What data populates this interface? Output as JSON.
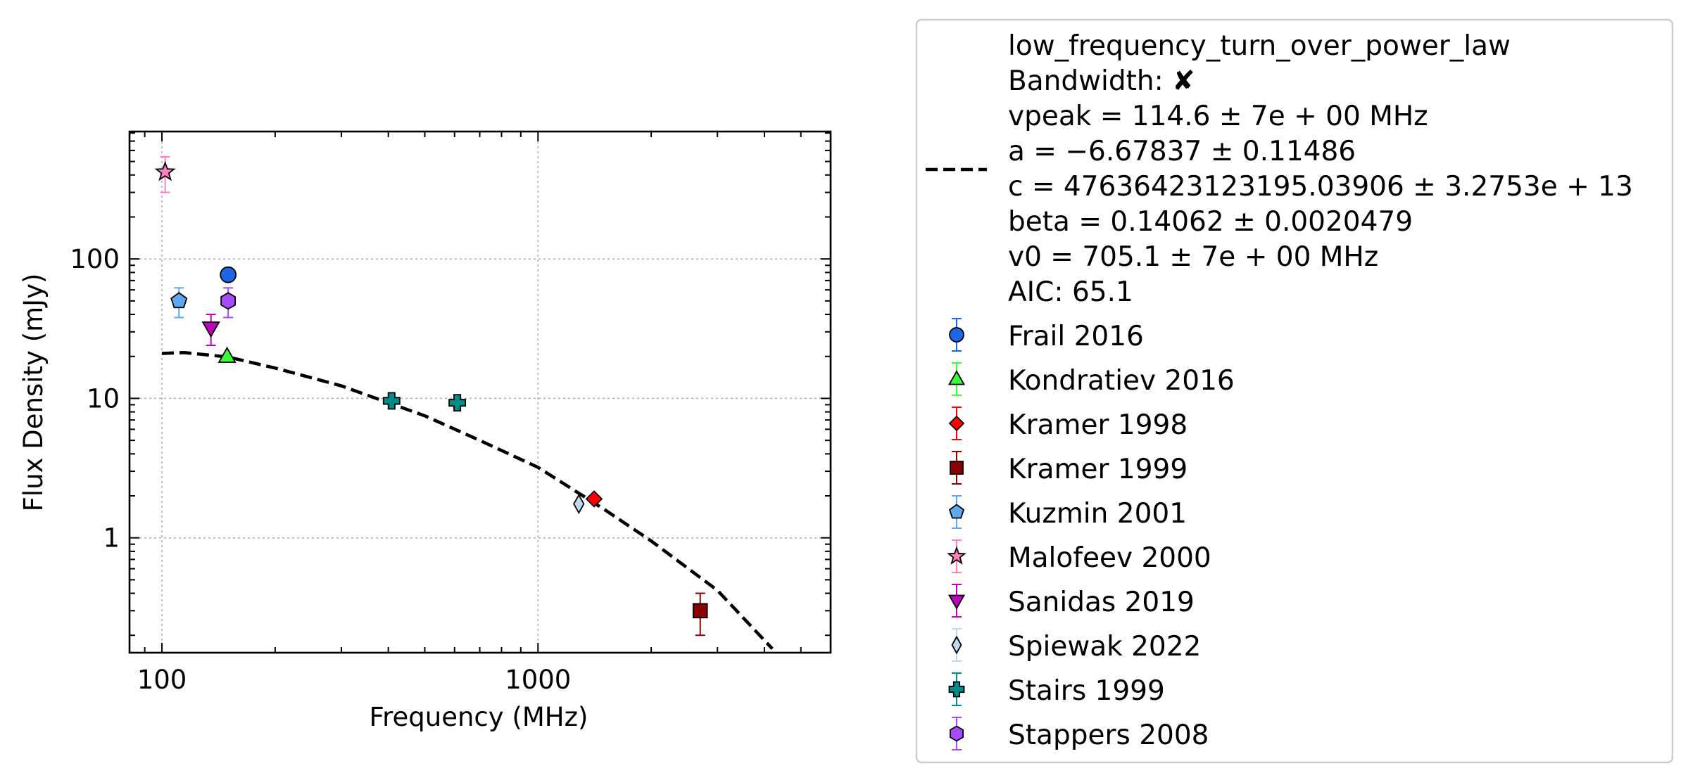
{
  "chart_data": {
    "type": "scatter",
    "xlabel": "Frequency (MHz)",
    "ylabel": "Flux Density (mJy)",
    "x_scale": "log",
    "y_scale": "log",
    "xlim": [
      82,
      6000
    ],
    "ylim": [
      0.15,
      820
    ],
    "x_ticks": [
      {
        "value": 100,
        "label": "100"
      },
      {
        "value": 1000,
        "label": "1000"
      }
    ],
    "y_ticks": [
      {
        "value": 1,
        "label": "1"
      },
      {
        "value": 10,
        "label": "10"
      },
      {
        "value": 100,
        "label": "100"
      }
    ],
    "grid": true,
    "legend_position": "outside-right",
    "fit": {
      "model": "low_frequency_turn_over_power_law",
      "color": "#000000",
      "line_style": "dashed",
      "label_lines": [
        "low_frequency_turn_over_power_law",
        "Bandwidth: ✘",
        "vpeak = 114.6 ± 7e + 00 MHz",
        "a = −6.67837 ± 0.11486",
        "c = 47636423123195.03906 ± 3.2753e + 13",
        "beta = 0.14062 ± 0.0020479",
        "v0 = 705.1 ± 7e + 00 MHz",
        "AIC: 65.1"
      ],
      "points": [
        [
          100,
          21
        ],
        [
          114.6,
          21.3
        ],
        [
          150,
          19.8
        ],
        [
          200,
          16.5
        ],
        [
          300,
          12.3
        ],
        [
          500,
          7.5
        ],
        [
          700,
          5.0
        ],
        [
          1000,
          3.2
        ],
        [
          1500,
          1.6
        ],
        [
          2000,
          0.95
        ],
        [
          3000,
          0.42
        ],
        [
          4200,
          0.16
        ]
      ]
    },
    "series": [
      {
        "name": "Frail 2016",
        "marker": "circle",
        "color": "#1f66e5",
        "points": [
          {
            "x": 150,
            "y": 77,
            "yerr_low": 0,
            "yerr_high": 0
          }
        ]
      },
      {
        "name": "Kondratiev 2016",
        "marker": "triangle-up",
        "color": "#3cff3c",
        "points": [
          {
            "x": 149,
            "y": 20,
            "yerr_low": 0,
            "yerr_high": 0
          }
        ]
      },
      {
        "name": "Kramer 1998",
        "marker": "diamond",
        "color": "#ff0000",
        "points": [
          {
            "x": 1410,
            "y": 1.9,
            "yerr_low": 0,
            "yerr_high": 0
          }
        ]
      },
      {
        "name": "Kramer 1999",
        "marker": "square",
        "color": "#8b0000",
        "points": [
          {
            "x": 2700,
            "y": 0.3,
            "yerr_low": 0.1,
            "yerr_high": 0.1
          }
        ]
      },
      {
        "name": "Kuzmin 2001",
        "marker": "pentagon",
        "color": "#5fa8ef",
        "points": [
          {
            "x": 111,
            "y": 50,
            "yerr_low": 12,
            "yerr_high": 12
          }
        ]
      },
      {
        "name": "Malofeev 2000",
        "marker": "star",
        "color": "#ff7fbf",
        "points": [
          {
            "x": 102,
            "y": 420,
            "yerr_low": 120,
            "yerr_high": 120
          }
        ]
      },
      {
        "name": "Sanidas 2019",
        "marker": "triangle-down",
        "color": "#bf00bf",
        "points": [
          {
            "x": 135,
            "y": 32,
            "yerr_low": 8,
            "yerr_high": 8
          }
        ]
      },
      {
        "name": "Spiewak 2022",
        "marker": "thin-diamond",
        "color": "#bfd9f5",
        "points": [
          {
            "x": 1284,
            "y": 1.75,
            "yerr_low": 0,
            "yerr_high": 0
          }
        ]
      },
      {
        "name": "Stairs 1999",
        "marker": "plus",
        "color": "#008b8b",
        "points": [
          {
            "x": 408,
            "y": 9.6,
            "yerr_low": 0,
            "yerr_high": 0
          },
          {
            "x": 610,
            "y": 9.3,
            "yerr_low": 0,
            "yerr_high": 0
          }
        ]
      },
      {
        "name": "Stappers 2008",
        "marker": "hexagon",
        "color": "#a64cff",
        "points": [
          {
            "x": 150,
            "y": 50,
            "yerr_low": 12,
            "yerr_high": 12
          }
        ]
      }
    ]
  }
}
